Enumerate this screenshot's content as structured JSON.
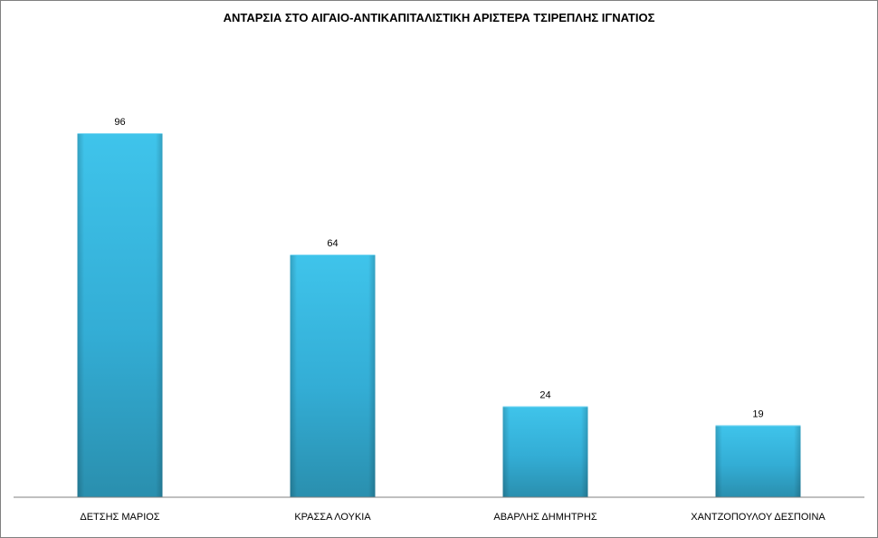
{
  "chart_data": {
    "type": "bar",
    "title": "ΑΝΤΑΡΣΙΑ ΣΤΟ ΑΙΓΑΙΟ-ΑΝΤΙΚΑΠΙΤΑΛΙΣΤΙΚΗ ΑΡΙΣΤΕΡΑ ΤΣΙΡΕΠΛΗΣ ΙΓΝΑΤΙΟΣ",
    "categories": [
      "ΔΕΤΣΗΣ ΜΑΡΙΟΣ",
      "ΚΡΑΣΣΑ ΛΟΥΚΙΑ",
      "ΑΒΑΡΛΗΣ ΔΗΜΗΤΡΗΣ",
      "ΧΑΝΤΖΟΠΟΥΛΟΥ ΔΕΣΠΟΙΝΑ"
    ],
    "values": [
      96,
      64,
      24,
      19
    ],
    "data_labels": [
      "96",
      "64",
      "24",
      "19"
    ],
    "xlabel": "",
    "ylabel": "",
    "ylim": [
      0,
      96
    ],
    "grid": false,
    "legend": "none",
    "bar_color": "#3bbde3"
  }
}
